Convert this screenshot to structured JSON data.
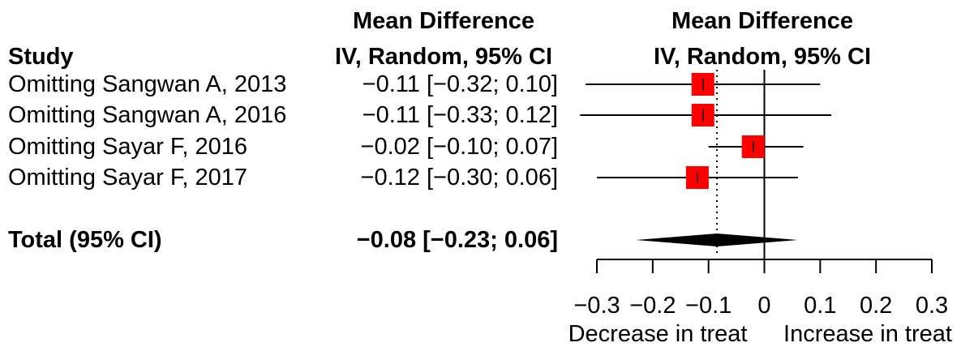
{
  "chart_data": {
    "type": "forest",
    "headers": {
      "study": "Study",
      "md_text_line1": "Mean Difference",
      "md_text_line2": "IV, Random, 95% CI",
      "md_plot_line1": "Mean Difference",
      "md_plot_line2": "IV, Random, 95% CI"
    },
    "studies": [
      {
        "label": "Omitting Sangwan A, 2013",
        "ci_text": "−0.11 [−0.32; 0.10]",
        "estimate": -0.11,
        "lower": -0.32,
        "upper": 0.1
      },
      {
        "label": "Omitting Sangwan A, 2016",
        "ci_text": "−0.11 [−0.33; 0.12]",
        "estimate": -0.11,
        "lower": -0.33,
        "upper": 0.12
      },
      {
        "label": "Omitting Sayar F, 2016",
        "ci_text": "−0.02 [−0.10; 0.07]",
        "estimate": -0.02,
        "lower": -0.1,
        "upper": 0.07
      },
      {
        "label": "Omitting Sayar F, 2017",
        "ci_text": "−0.12 [−0.30; 0.06]",
        "estimate": -0.12,
        "lower": -0.3,
        "upper": 0.06
      }
    ],
    "total": {
      "label": "Total (95% CI)",
      "ci_text": "−0.08 [−0.23; 0.06]",
      "estimate": -0.085,
      "lower": -0.23,
      "upper": 0.06
    },
    "xlim": [
      -0.3,
      0.3
    ],
    "xticks": [
      -0.3,
      -0.2,
      -0.1,
      0,
      0.1,
      0.2,
      0.3
    ],
    "xtick_labels": [
      "−0.3",
      "−0.2",
      "−0.1",
      "0",
      "0.1",
      "0.2",
      "0.3"
    ],
    "direction_labels": {
      "left": "Decrease in treat",
      "right": "Increase in treat"
    },
    "null_line": 0,
    "pooled_reference_line": -0.085,
    "marker_color": "#ff0000"
  }
}
